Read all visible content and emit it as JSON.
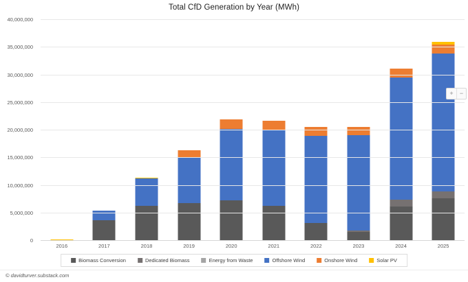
{
  "title": "Total CfD Generation by Year (MWh)",
  "footer": {
    "text": "© davidturver.substack.com"
  },
  "zoom_controls": {
    "zoom_in": "+",
    "zoom_out": "−"
  },
  "colors": {
    "biomass_conversion": "#595959",
    "dedicated_biomass": "#767171",
    "energy_from_waste": "#A5A5A5",
    "offshore_wind": "#4472C4",
    "onshore_wind": "#ED7D31",
    "solar_pv": "#FFC000",
    "gridline": "#E7E7E7",
    "axis_text": "#595959"
  },
  "chart_data": {
    "type": "bar",
    "stacked": true,
    "title": "Total CfD Generation by Year (MWh)",
    "xlabel": "",
    "ylabel": "",
    "ylim": [
      0,
      40000000
    ],
    "ytick_interval": 5000000,
    "ytick_labels": [
      "0",
      "5,000,000",
      "10,000,000",
      "15,000,000",
      "20,000,000",
      "25,000,000",
      "30,000,000",
      "35,000,000",
      "40,000,000"
    ],
    "grid": true,
    "legend_position": "bottom",
    "categories": [
      "2016",
      "2017",
      "2018",
      "2019",
      "2020",
      "2021",
      "2022",
      "2023",
      "2024",
      "2025"
    ],
    "series": [
      {
        "name": "Biomass Conversion",
        "color": "#595959",
        "values": [
          0,
          3650000,
          6200000,
          6750000,
          7150000,
          6250000,
          3150000,
          1450000,
          6100000,
          7550000
        ]
      },
      {
        "name": "Dedicated Biomass",
        "color": "#767171",
        "values": [
          0,
          0,
          0,
          0,
          0,
          0,
          0,
          350000,
          1250000,
          1300000
        ]
      },
      {
        "name": "Energy from Waste",
        "color": "#A5A5A5",
        "values": [
          50000,
          0,
          0,
          0,
          0,
          0,
          0,
          0,
          0,
          0
        ]
      },
      {
        "name": "Offshore Wind",
        "color": "#4472C4",
        "values": [
          0,
          1750000,
          4950000,
          8250000,
          12950000,
          13800000,
          15700000,
          17200000,
          22100000,
          25000000
        ]
      },
      {
        "name": "Onshore Wind",
        "color": "#ED7D31",
        "values": [
          0,
          0,
          0,
          1250000,
          1750000,
          1550000,
          1650000,
          1500000,
          1650000,
          1550000
        ]
      },
      {
        "name": "Solar PV",
        "color": "#FFC000",
        "values": [
          100000,
          0,
          100000,
          0,
          0,
          0,
          0,
          0,
          0,
          500000
        ]
      }
    ]
  }
}
